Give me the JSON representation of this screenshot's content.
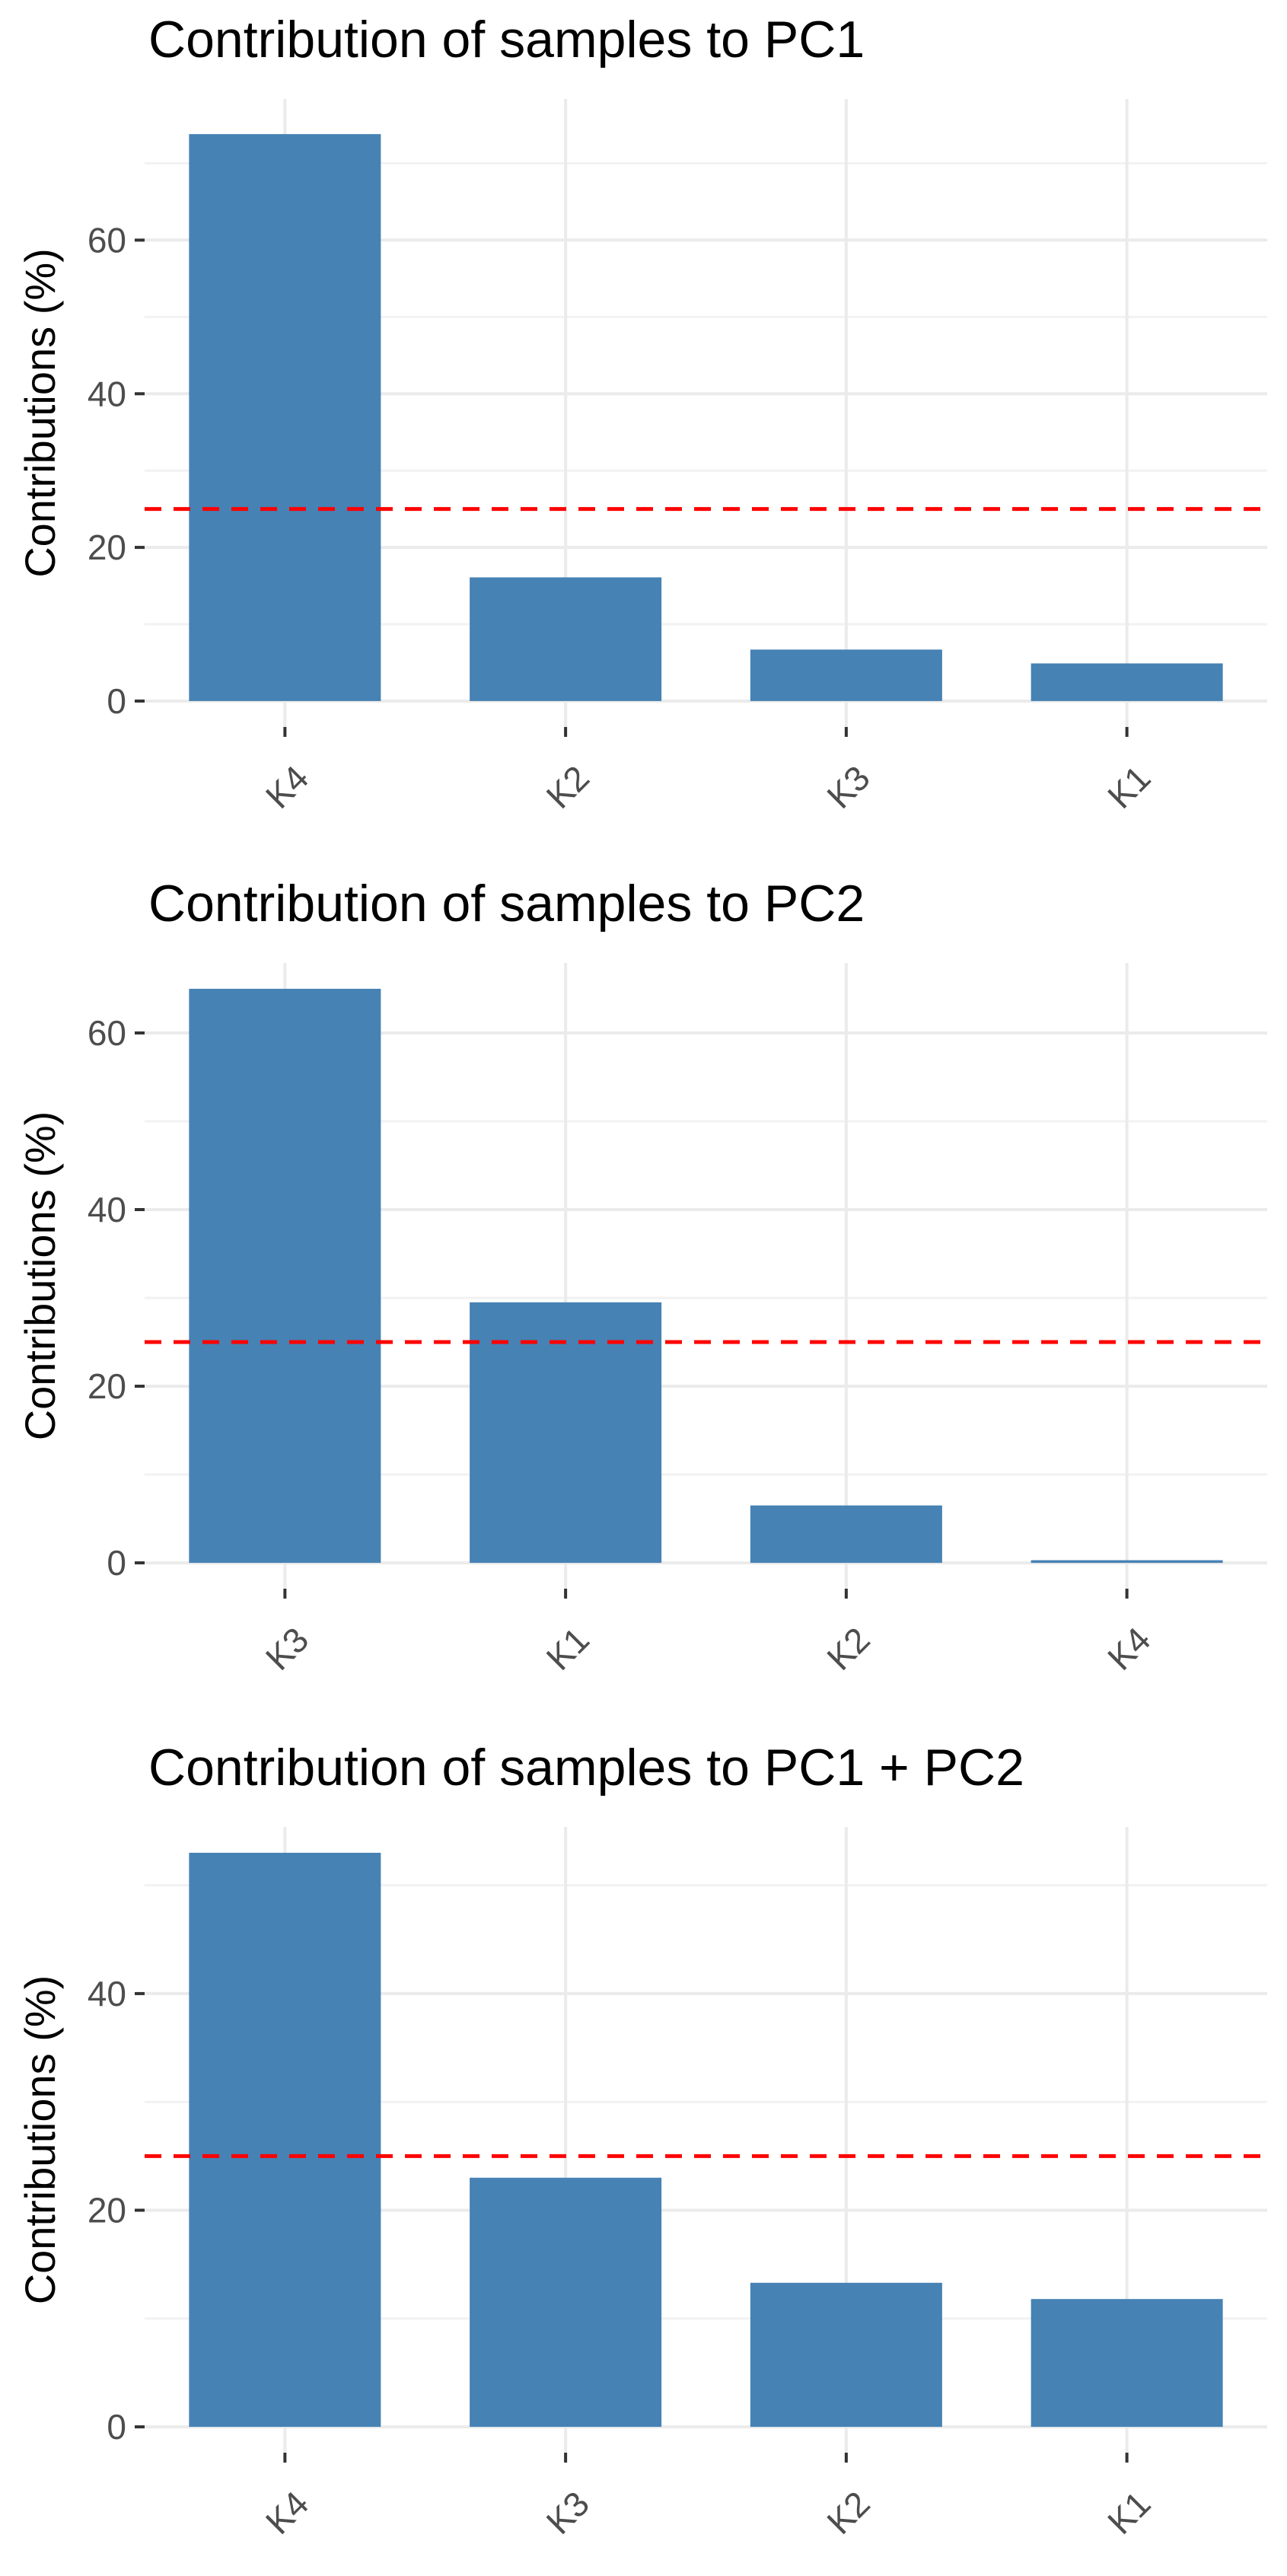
{
  "chart_data": [
    {
      "type": "bar",
      "title": "Contribution of samples to PC1",
      "xlabel": "",
      "ylabel": "Contributions (%)",
      "categories": [
        "K4",
        "K2",
        "K3",
        "K1"
      ],
      "values": [
        73.8,
        16.1,
        6.7,
        4.9
      ],
      "ylim": [
        0,
        75
      ],
      "yticks": [
        0,
        20,
        40,
        60
      ],
      "reference_line": 25,
      "bar_color": "#4682b4",
      "reference_color": "#ff0000",
      "grid": true
    },
    {
      "type": "bar",
      "title": "Contribution of samples to PC2",
      "xlabel": "",
      "ylabel": "Contributions (%)",
      "categories": [
        "K3",
        "K1",
        "K2",
        "K4"
      ],
      "values": [
        65.0,
        29.5,
        6.5,
        0.3
      ],
      "ylim": [
        0,
        65
      ],
      "yticks": [
        0,
        20,
        40,
        60
      ],
      "reference_line": 25,
      "bar_color": "#4682b4",
      "reference_color": "#ff0000",
      "grid": true
    },
    {
      "type": "bar",
      "title": "Contribution of samples to PC1 + PC2",
      "xlabel": "",
      "ylabel": "Contributions (%)",
      "categories": [
        "K4",
        "K3",
        "K2",
        "K1"
      ],
      "values": [
        53.0,
        23.0,
        13.3,
        11.8
      ],
      "ylim": [
        0,
        53
      ],
      "yticks": [
        0,
        20,
        40
      ],
      "reference_line": 25,
      "bar_color": "#4682b4",
      "reference_color": "#ff0000",
      "grid": true
    }
  ]
}
